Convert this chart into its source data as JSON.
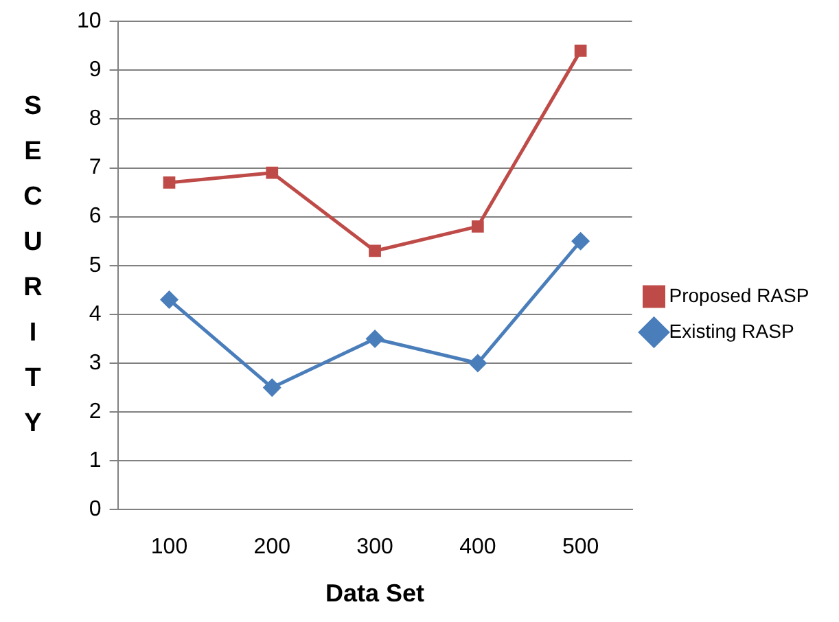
{
  "chart_data": {
    "type": "line",
    "xlabel": "Data Set",
    "ylabel": "SECURITY",
    "categories": [
      "100",
      "200",
      "300",
      "400",
      "500"
    ],
    "series": [
      {
        "name": "Proposed RASP",
        "color": "#be4b48",
        "marker": "square",
        "values": [
          6.7,
          6.9,
          5.3,
          5.8,
          9.4
        ]
      },
      {
        "name": "Existing RASP",
        "color": "#4a7ebb",
        "marker": "diamond",
        "values": [
          4.3,
          2.5,
          3.5,
          3.0,
          5.5
        ]
      }
    ],
    "ylim": [
      0,
      10
    ],
    "yticks": [
      0,
      1,
      2,
      3,
      4,
      5,
      6,
      7,
      8,
      9,
      10
    ],
    "grid": "y",
    "legend": "right"
  }
}
